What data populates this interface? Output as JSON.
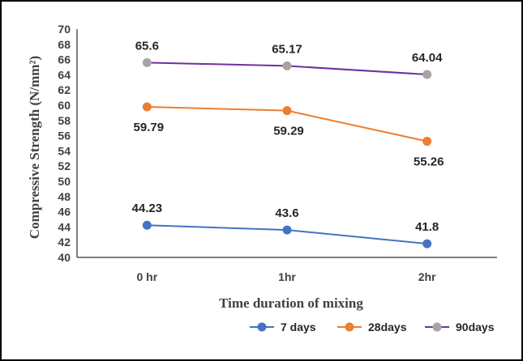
{
  "chart_data": {
    "type": "line",
    "title": "",
    "categories": [
      "0 hr",
      "1hr",
      "2hr"
    ],
    "xlabel": "Time duration  of mixing",
    "ylabel": "Compressive Strength (N/mm²)",
    "ylim": [
      40,
      70
    ],
    "ytick_step": 2,
    "grid": false,
    "legend_position": "bottom-right",
    "series": [
      {
        "name": "7 days",
        "color": "#4472C4",
        "values": [
          44.23,
          43.6,
          41.8
        ],
        "labels": [
          "44.23",
          "43.6",
          "41.8"
        ],
        "label_position": "above"
      },
      {
        "name": "28days",
        "color": "#ED7D31",
        "values": [
          59.79,
          59.29,
          55.26
        ],
        "labels": [
          "59.79",
          "59.29",
          "55.26"
        ],
        "label_position": "below"
      },
      {
        "name": "90days",
        "color": "#7030A0",
        "marker_color": "#A5A5A5",
        "values": [
          65.6,
          65.17,
          64.04
        ],
        "labels": [
          "65.6",
          "65.17",
          "64.04"
        ],
        "label_position": "above"
      }
    ]
  }
}
